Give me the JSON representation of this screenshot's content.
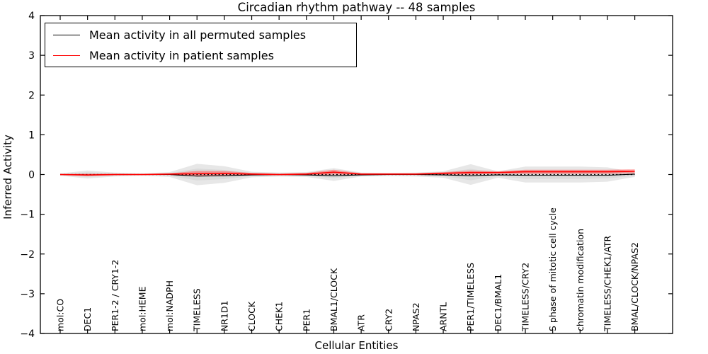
{
  "figure_title": "Circadian rhythm pathway -- 48 samples",
  "chart_data": {
    "type": "line",
    "title": "Circadian rhythm pathway -- 48 samples",
    "xlabel": "Cellular Entities",
    "ylabel": "Inferred Activity",
    "ylim": [
      -4,
      4
    ],
    "yticks": [
      -4,
      -3,
      -2,
      -1,
      0,
      1,
      2,
      3,
      4
    ],
    "ytick_labels": [
      "−4",
      "−3",
      "−2",
      "−1",
      "0",
      "1",
      "2",
      "3",
      "4"
    ],
    "grid": false,
    "legend_position": "upper-left",
    "categories": [
      "mol:CO",
      "DEC1",
      "PER1-2 / CRY1-2",
      "mol:HEME",
      "mol:NADPH",
      "TIMELESS",
      "NR1D1",
      "CLOCK",
      "CHEK1",
      "PER1",
      "BMAL1/CLOCK",
      "ATR",
      "CRY2",
      "NPAS2",
      "ARNTL",
      "PER1/TIMELESS",
      "DEC1/BMAL1",
      "TIMELESS/CRY2",
      "S phase of mitotic cell cycle",
      "chromatin modification",
      "TIMELESS/CHEK1/ATR",
      "BMAL/CLOCK/NPAS2"
    ],
    "series": [
      {
        "name": "Mean activity in all permuted samples",
        "color": "#000000",
        "values": [
          0,
          -0.01,
          0,
          0,
          0,
          -0.04,
          -0.03,
          -0.01,
          0,
          -0.01,
          -0.03,
          -0.01,
          0,
          0,
          -0.01,
          -0.03,
          -0.01,
          -0.02,
          -0.02,
          -0.02,
          -0.02,
          0.01
        ]
      },
      {
        "name": "Mean activity in patient samples",
        "color": "#ff0000",
        "values": [
          0,
          -0.01,
          0,
          0,
          0.01,
          0.02,
          0.03,
          0.01,
          0,
          0.01,
          0.06,
          0.01,
          0.01,
          0.01,
          0.03,
          0.05,
          0.05,
          0.07,
          0.07,
          0.07,
          0.07,
          0.08
        ]
      }
    ],
    "bands": [
      {
        "name": "permuted-samples-range",
        "center": "zero",
        "color": "#e4e4e4",
        "inner_color": "#d8d8d8",
        "half_widths": [
          0.03,
          0.1,
          0.05,
          0.03,
          0.06,
          0.27,
          0.21,
          0.07,
          0.05,
          0.06,
          0.16,
          0.05,
          0.04,
          0.05,
          0.08,
          0.26,
          0.08,
          0.2,
          0.2,
          0.2,
          0.18,
          0.06
        ]
      },
      {
        "name": "patient-samples-range",
        "center": "patient",
        "color": "#ff4d4d",
        "half_widths": [
          0.015,
          0.03,
          0.02,
          0.015,
          0.02,
          0.07,
          0.06,
          0.03,
          0.02,
          0.03,
          0.06,
          0.02,
          0.02,
          0.02,
          0.03,
          0.05,
          0.03,
          0.05,
          0.05,
          0.05,
          0.05,
          0.05
        ]
      }
    ],
    "zero_line": {
      "y": 0,
      "style": "dotted",
      "color": "#000000"
    },
    "legend": [
      {
        "label": "Mean activity in all permuted samples",
        "color": "#000000"
      },
      {
        "label": "Mean activity in patient samples",
        "color": "#ff0000"
      }
    ]
  },
  "colors": {
    "background": "#ffffff",
    "spine": "#000000"
  }
}
